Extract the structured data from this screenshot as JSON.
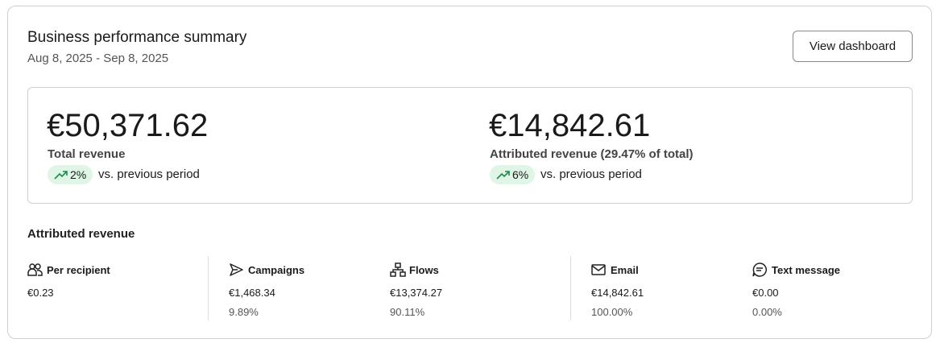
{
  "header": {
    "title": "Business performance summary",
    "date_range": "Aug 8, 2025 - Sep 8, 2025",
    "button": "View dashboard"
  },
  "summary": {
    "metrics": [
      {
        "value": "€50,371.62",
        "label": "Total revenue",
        "change": "2%",
        "comparison": "vs. previous period"
      },
      {
        "value": "€14,842.61",
        "label": "Attributed revenue (29.47% of total)",
        "change": "6%",
        "comparison": "vs. previous period"
      }
    ]
  },
  "attributed": {
    "title": "Attributed revenue",
    "items": [
      {
        "label": "Per recipient",
        "value": "€0.23"
      },
      {
        "label": "Campaigns",
        "value": "€1,468.34",
        "share": "9.89%"
      },
      {
        "label": "Flows",
        "value": "€13,374.27",
        "share": "90.11%"
      },
      {
        "label": "Email",
        "value": "€14,842.61",
        "share": "100.00%"
      },
      {
        "label": "Text message",
        "value": "€0.00",
        "share": "0.00%"
      }
    ]
  }
}
